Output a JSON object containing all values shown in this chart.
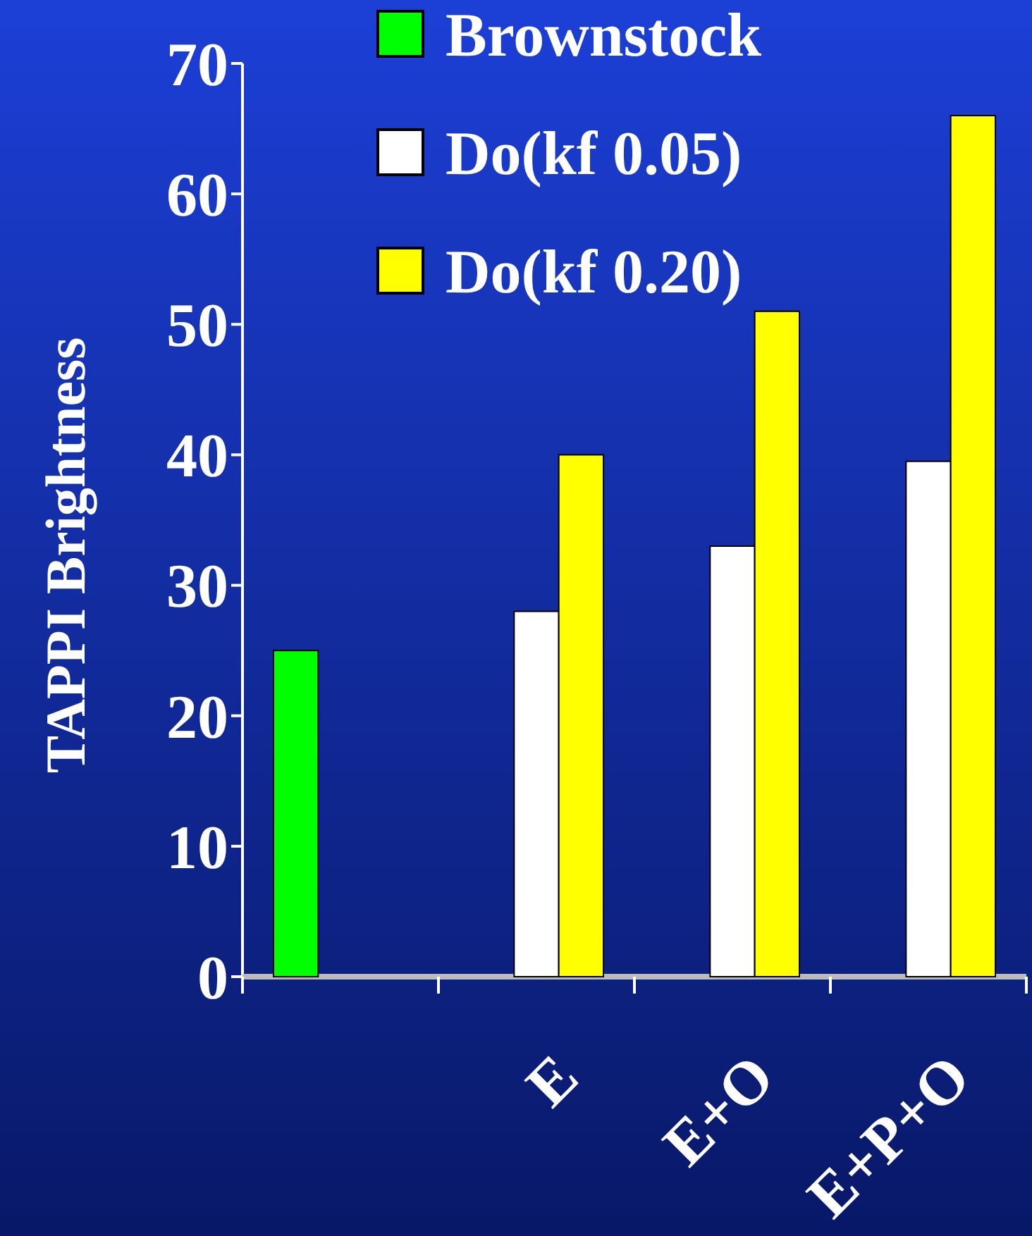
{
  "chart_data": {
    "type": "bar",
    "ylabel": "TAPPI Brightness",
    "categories": [
      null,
      "E",
      "E+O",
      "E+P+O"
    ],
    "series": [
      {
        "name": "Brownstock",
        "color": "#00ff00",
        "values": [
          25,
          null,
          null,
          null
        ]
      },
      {
        "name": "Do(kf 0.05)",
        "color": "#ffffff",
        "values": [
          null,
          28,
          33,
          39.5
        ]
      },
      {
        "name": "Do(kf 0.20)",
        "color": "#ffff00",
        "values": [
          null,
          40,
          51,
          66
        ]
      }
    ],
    "ylim": [
      0,
      70
    ],
    "yticks": [
      0,
      10,
      20,
      30,
      40,
      50,
      60,
      70
    ],
    "grid": false,
    "legend": "top"
  }
}
